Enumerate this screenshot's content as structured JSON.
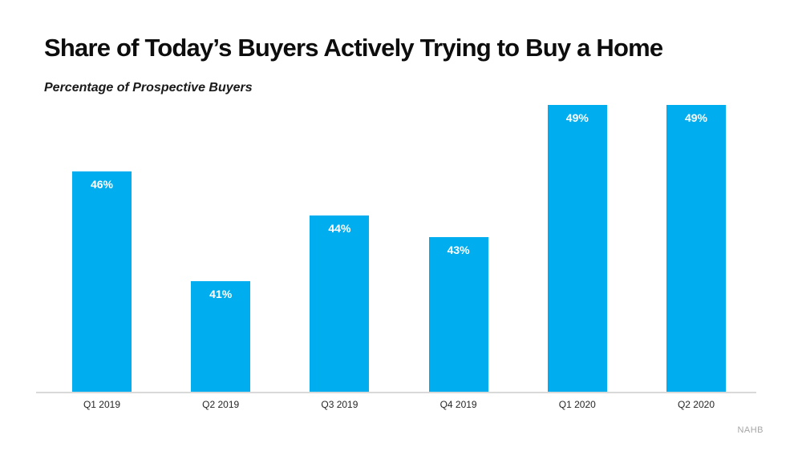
{
  "slide": {
    "title": "Share of Today’s Buyers Actively Trying to Buy a Home",
    "subtitle": "Percentage of Prospective Buyers",
    "source": "NAHB"
  },
  "chart_data": {
    "type": "bar",
    "title": "Share of Today’s Buyers Actively Trying to Buy a Home",
    "subtitle": "Percentage of Prospective Buyers",
    "categories": [
      "Q1 2019",
      "Q2 2019",
      "Q3 2019",
      "Q4 2019",
      "Q1 2020",
      "Q2 2020"
    ],
    "values": [
      46,
      41,
      44,
      43,
      49,
      49
    ],
    "value_labels": [
      "46%",
      "41%",
      "44%",
      "43%",
      "49%",
      "49%"
    ],
    "xlabel": "",
    "ylabel": "",
    "ylim": [
      36,
      50
    ],
    "grid": false,
    "legend": "none",
    "bar_color": "#00AEEF",
    "value_label_color": "#FFFFFF",
    "axis_line_color": "#D9D9D9",
    "source_label": "NAHB"
  }
}
